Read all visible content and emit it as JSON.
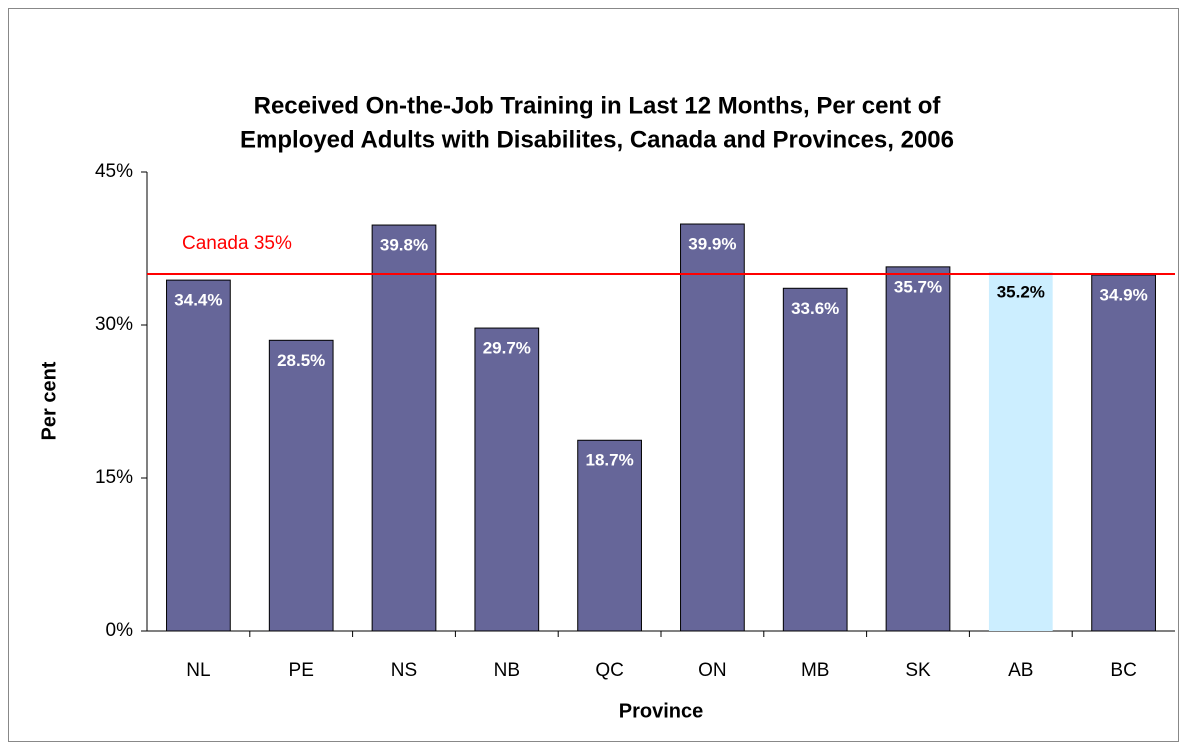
{
  "chart_data": {
    "type": "bar",
    "title": [
      "Received On-the-Job Training in Last 12 Months, Per cent of",
      "Employed Adults with Disabilites, Canada and Provinces, 2006"
    ],
    "x_label": "Province",
    "y_label": "Per cent",
    "categories": [
      "NL",
      "PE",
      "NS",
      "NB",
      "QC",
      "ON",
      "MB",
      "SK",
      "AB",
      "BC"
    ],
    "values": [
      34.4,
      28.5,
      39.8,
      29.7,
      18.7,
      39.9,
      33.6,
      35.7,
      35.2,
      34.9
    ],
    "value_labels": [
      "34.4%",
      "28.5%",
      "39.8%",
      "29.7%",
      "18.7%",
      "39.9%",
      "33.6%",
      "35.7%",
      "35.2%",
      "34.9%"
    ],
    "colors": [
      "#666699",
      "#666699",
      "#666699",
      "#666699",
      "#666699",
      "#666699",
      "#666699",
      "#666699",
      "#cceeff",
      "#666699"
    ],
    "label_colors": [
      "#ffffff",
      "#ffffff",
      "#ffffff",
      "#ffffff",
      "#ffffff",
      "#ffffff",
      "#ffffff",
      "#ffffff",
      "#000000",
      "#ffffff"
    ],
    "ylim": [
      0,
      45
    ],
    "yticks": [
      {
        "value": 0,
        "label": "0%"
      },
      {
        "value": 15,
        "label": "15%"
      },
      {
        "value": 30,
        "label": "30%"
      },
      {
        "value": 45,
        "label": "45%"
      }
    ],
    "grid": false,
    "reference_line": {
      "value": 35,
      "label": "Canada 35%",
      "color": "#ff0000"
    }
  }
}
